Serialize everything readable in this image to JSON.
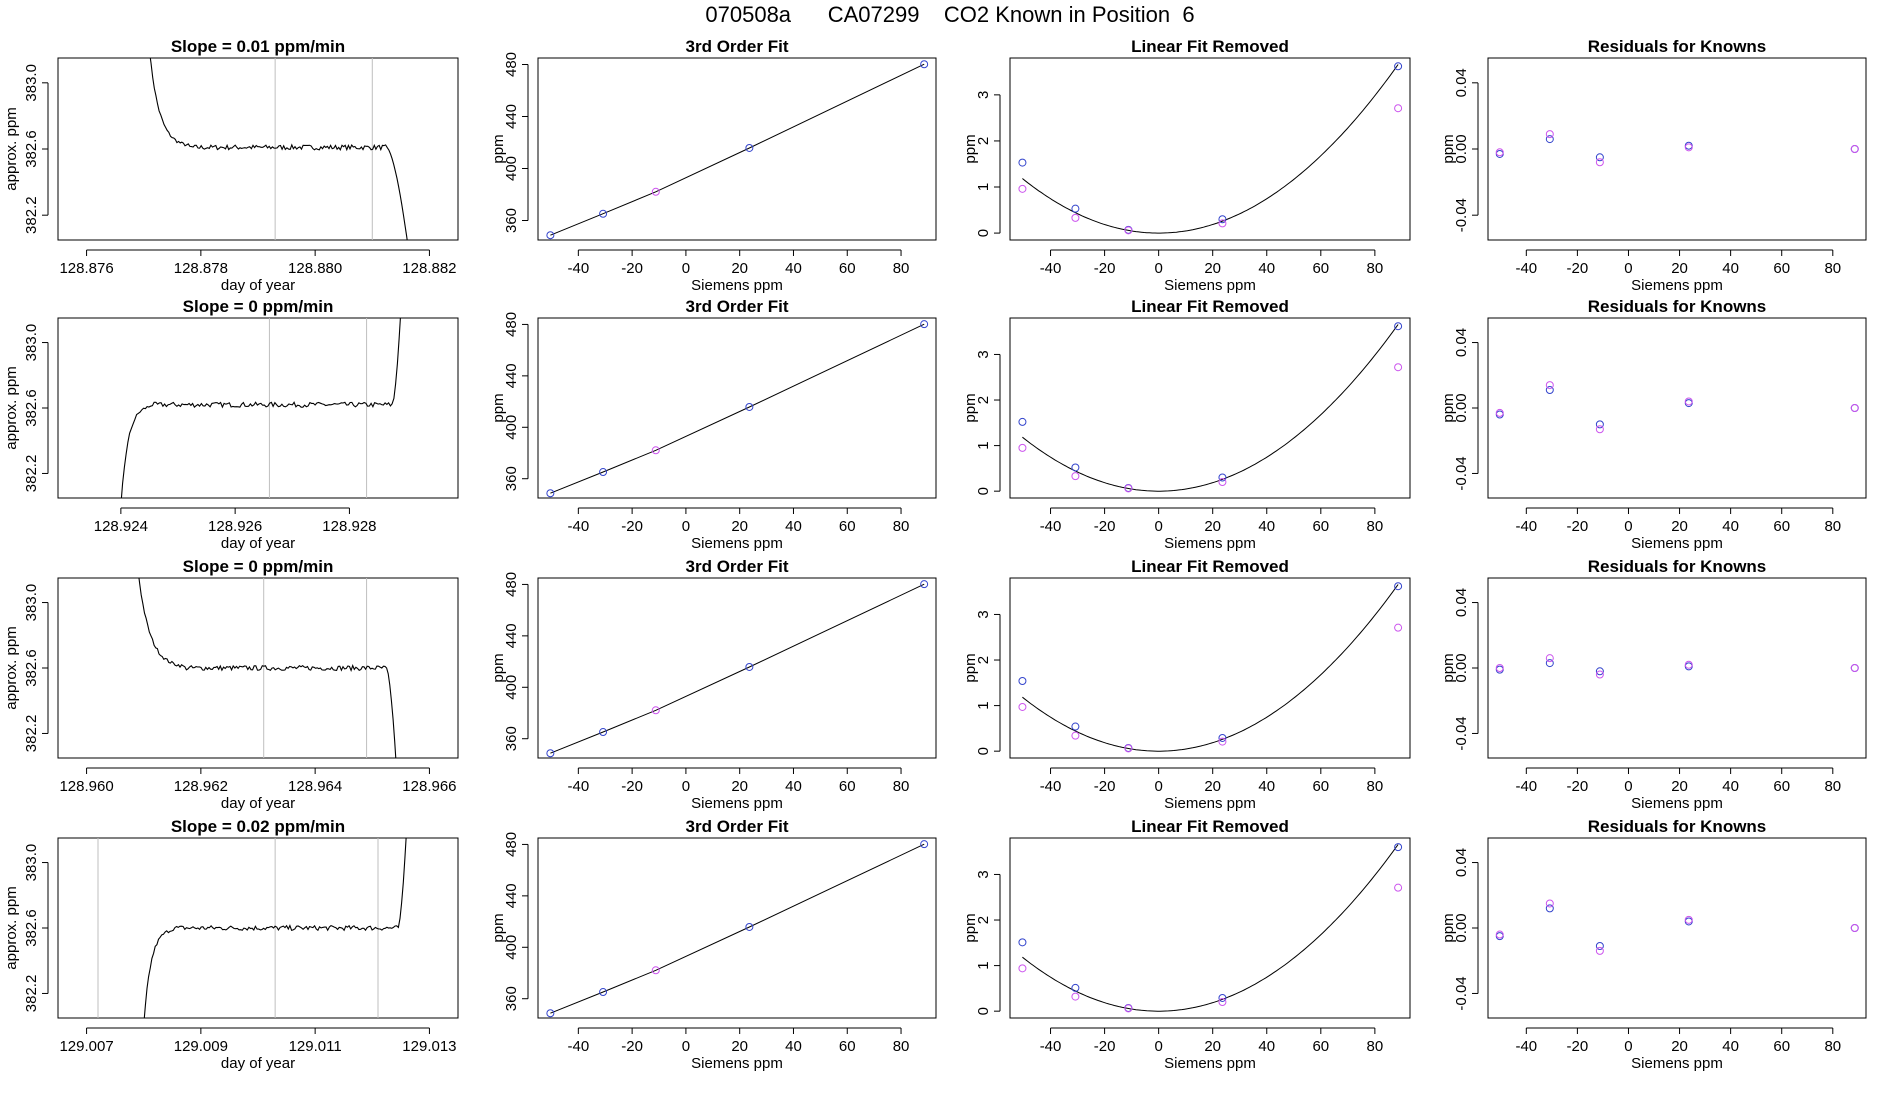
{
  "page": {
    "title": "070508a      CA07299    CO2 Known in Position  6"
  },
  "chart_data": [
    {
      "type": "line",
      "panel": "timeseries",
      "row": 0,
      "title": "Slope =  0.01  ppm/min",
      "xlabel": "day of year",
      "ylabel": "approx. ppm",
      "xlim": [
        128.8755,
        128.8825
      ],
      "ylim": [
        382.05,
        383.15
      ],
      "xticks": [
        128.876,
        128.878,
        128.88,
        128.882
      ],
      "xtick_labels": [
        "128.876",
        "128.878",
        "128.880",
        "128.882"
      ],
      "yticks": [
        382.2,
        382.6,
        383.0
      ],
      "ytick_labels": [
        "382.2",
        "382.6",
        "383.0"
      ],
      "vlines": [
        128.8793,
        128.881
      ],
      "trace": {
        "start": 128.8771,
        "end": 128.88163,
        "level": 382.61,
        "preFrom": 383.2,
        "preEnd": 128.8778,
        "postX": 128.88125,
        "postTo": 382.0,
        "dir": "down"
      }
    },
    {
      "type": "line",
      "panel": "fit",
      "row": 0,
      "title": "3rd Order Fit",
      "xlabel": "Siemens ppm",
      "ylabel": "ppm",
      "xlim": [
        -55,
        93
      ],
      "ylim": [
        345,
        485
      ],
      "xticks": [
        -40,
        -20,
        0,
        20,
        40,
        60,
        80
      ],
      "xtick_labels": [
        "-40",
        "-20",
        "0",
        "20",
        "40",
        "60",
        "80"
      ],
      "yticks": [
        360,
        400,
        440,
        480
      ],
      "ytick_labels": [
        "360",
        "400",
        "440",
        "480"
      ],
      "series": [
        {
          "x": [
            -50.4,
            -30.8,
            -11.2,
            23.6,
            88.6
          ],
          "y": [
            348.7,
            365.2,
            382.1,
            415.8,
            480.2
          ]
        }
      ]
    },
    {
      "type": "scatter",
      "panel": "linear_removed",
      "row": 0,
      "title": "Linear Fit Removed",
      "xlabel": "Siemens ppm",
      "ylabel": "ppm",
      "xlim": [
        -55,
        93
      ],
      "ylim": [
        -0.15,
        3.8
      ],
      "xticks": [
        -40,
        -20,
        0,
        20,
        40,
        60,
        80
      ],
      "xtick_labels": [
        "-40",
        "-20",
        "0",
        "20",
        "40",
        "60",
        "80"
      ],
      "yticks": [
        0,
        1,
        2,
        3
      ],
      "ytick_labels": [
        "0",
        "1",
        "2",
        "3"
      ],
      "curve_coef": 0.000466,
      "series": [
        {
          "x": [
            -50.4,
            -30.8,
            -11.2,
            23.6,
            88.6
          ],
          "y": [
            1.53,
            0.53,
            0.07,
            0.3,
            3.62
          ]
        },
        {
          "x": [
            -50.4,
            -30.8,
            -11.2,
            23.6,
            88.6
          ],
          "y": [
            0.96,
            0.33,
            0.06,
            0.21,
            2.71
          ]
        }
      ]
    },
    {
      "type": "scatter",
      "panel": "residuals",
      "row": 0,
      "title": "Residuals for Knowns",
      "xlabel": "Siemens ppm",
      "ylabel": "ppm",
      "xlim": [
        -55,
        93
      ],
      "ylim": [
        -0.055,
        0.055
      ],
      "xticks": [
        -40,
        -20,
        0,
        20,
        40,
        60,
        80
      ],
      "xtick_labels": [
        "-40",
        "-20",
        "0",
        "20",
        "40",
        "60",
        "80"
      ],
      "yticks": [
        -0.04,
        0.0,
        0.04
      ],
      "ytick_labels": [
        "-0.04",
        "0.00",
        "0.04"
      ],
      "series": [
        {
          "x": [
            -50.4,
            -30.8,
            -11.2,
            23.6,
            88.6
          ],
          "y": [
            -0.003,
            0.006,
            -0.005,
            0.002,
            0.0
          ]
        },
        {
          "x": [
            -50.4,
            -30.8,
            -11.2,
            23.6,
            88.6
          ],
          "y": [
            -0.002,
            0.009,
            -0.008,
            0.001,
            0.0
          ]
        }
      ]
    },
    {
      "type": "line",
      "panel": "timeseries",
      "row": 1,
      "title": "Slope =  0  ppm/min",
      "xlabel": "day of year",
      "ylabel": "approx. ppm",
      "xlim": [
        128.9229,
        128.9299
      ],
      "ylim": [
        382.05,
        383.15
      ],
      "xticks": [
        128.924,
        128.926,
        128.928
      ],
      "xtick_labels": [
        "128.924",
        "128.926",
        "128.928"
      ],
      "yticks": [
        382.2,
        382.6,
        383.0
      ],
      "ytick_labels": [
        "382.2",
        "382.6",
        "383.0"
      ],
      "vlines": [
        128.9266,
        128.9283
      ],
      "trace": {
        "start": 128.924,
        "end": 128.9289,
        "level": 382.62,
        "preFrom": 382.0,
        "preEnd": 128.9245,
        "postX": 128.92875,
        "postTo": 383.2,
        "dir": "up"
      }
    },
    {
      "type": "line",
      "panel": "fit",
      "row": 1,
      "title": "3rd Order Fit",
      "xlabel": "Siemens ppm",
      "ylabel": "ppm",
      "xlim": [
        -55,
        93
      ],
      "ylim": [
        345,
        485
      ],
      "xticks": [
        -40,
        -20,
        0,
        20,
        40,
        60,
        80
      ],
      "xtick_labels": [
        "-40",
        "-20",
        "0",
        "20",
        "40",
        "60",
        "80"
      ],
      "yticks": [
        360,
        400,
        440,
        480
      ],
      "ytick_labels": [
        "360",
        "400",
        "440",
        "480"
      ],
      "series": [
        {
          "x": [
            -50.4,
            -30.8,
            -11.2,
            23.6,
            88.6
          ],
          "y": [
            348.7,
            365.2,
            382.1,
            415.8,
            480.2
          ]
        }
      ]
    },
    {
      "type": "scatter",
      "panel": "linear_removed",
      "row": 1,
      "title": "Linear Fit Removed",
      "xlabel": "Siemens ppm",
      "ylabel": "ppm",
      "xlim": [
        -55,
        93
      ],
      "ylim": [
        -0.15,
        3.8
      ],
      "xticks": [
        -40,
        -20,
        0,
        20,
        40,
        60,
        80
      ],
      "xtick_labels": [
        "-40",
        "-20",
        "0",
        "20",
        "40",
        "60",
        "80"
      ],
      "yticks": [
        0,
        1,
        2,
        3
      ],
      "ytick_labels": [
        "0",
        "1",
        "2",
        "3"
      ],
      "curve_coef": 0.000466,
      "series": [
        {
          "x": [
            -50.4,
            -30.8,
            -11.2,
            23.6,
            88.6
          ],
          "y": [
            1.52,
            0.52,
            0.07,
            0.3,
            3.62
          ]
        },
        {
          "x": [
            -50.4,
            -30.8,
            -11.2,
            23.6,
            88.6
          ],
          "y": [
            0.95,
            0.33,
            0.06,
            0.2,
            2.72
          ]
        }
      ]
    },
    {
      "type": "scatter",
      "panel": "residuals",
      "row": 1,
      "title": "Residuals for Knowns",
      "xlabel": "Siemens ppm",
      "ylabel": "ppm",
      "xlim": [
        -55,
        93
      ],
      "ylim": [
        -0.055,
        0.055
      ],
      "xticks": [
        -40,
        -20,
        0,
        20,
        40,
        60,
        80
      ],
      "xtick_labels": [
        "-40",
        "-20",
        "0",
        "20",
        "40",
        "60",
        "80"
      ],
      "yticks": [
        -0.04,
        0.0,
        0.04
      ],
      "ytick_labels": [
        "-0.04",
        "0.00",
        "0.04"
      ],
      "series": [
        {
          "x": [
            -50.4,
            -30.8,
            -11.2,
            23.6,
            88.6
          ],
          "y": [
            -0.004,
            0.011,
            -0.01,
            0.003,
            0.0
          ]
        },
        {
          "x": [
            -50.4,
            -30.8,
            -11.2,
            23.6,
            88.6
          ],
          "y": [
            -0.003,
            0.014,
            -0.013,
            0.004,
            0.0
          ]
        }
      ]
    },
    {
      "type": "line",
      "panel": "timeseries",
      "row": 2,
      "title": "Slope =  0  ppm/min",
      "xlabel": "day of year",
      "ylabel": "approx. ppm",
      "xlim": [
        128.9595,
        128.9665
      ],
      "ylim": [
        382.05,
        383.15
      ],
      "xticks": [
        128.96,
        128.962,
        128.964,
        128.966
      ],
      "xtick_labels": [
        "128.960",
        "128.962",
        "128.964",
        "128.966"
      ],
      "yticks": [
        382.2,
        382.6,
        383.0
      ],
      "ytick_labels": [
        "382.2",
        "382.6",
        "383.0"
      ],
      "vlines": [
        128.9631,
        128.9649
      ],
      "trace": {
        "start": 128.9609,
        "end": 128.96542,
        "level": 382.6,
        "preFrom": 383.2,
        "preEnd": 128.9617,
        "postX": 128.96525,
        "postTo": 382.0,
        "dir": "down"
      }
    },
    {
      "type": "line",
      "panel": "fit",
      "row": 2,
      "title": "3rd Order Fit",
      "xlabel": "Siemens ppm",
      "ylabel": "ppm",
      "xlim": [
        -55,
        93
      ],
      "ylim": [
        345,
        485
      ],
      "xticks": [
        -40,
        -20,
        0,
        20,
        40,
        60,
        80
      ],
      "xtick_labels": [
        "-40",
        "-20",
        "0",
        "20",
        "40",
        "60",
        "80"
      ],
      "yticks": [
        360,
        400,
        440,
        480
      ],
      "ytick_labels": [
        "360",
        "400",
        "440",
        "480"
      ],
      "series": [
        {
          "x": [
            -50.4,
            -30.8,
            -11.2,
            23.6,
            88.6
          ],
          "y": [
            348.7,
            365.2,
            382.1,
            415.8,
            480.2
          ]
        }
      ]
    },
    {
      "type": "scatter",
      "panel": "linear_removed",
      "row": 2,
      "title": "Linear Fit Removed",
      "xlabel": "Siemens ppm",
      "ylabel": "ppm",
      "xlim": [
        -55,
        93
      ],
      "ylim": [
        -0.15,
        3.8
      ],
      "xticks": [
        -40,
        -20,
        0,
        20,
        40,
        60,
        80
      ],
      "xtick_labels": [
        "-40",
        "-20",
        "0",
        "20",
        "40",
        "60",
        "80"
      ],
      "yticks": [
        0,
        1,
        2,
        3
      ],
      "ytick_labels": [
        "0",
        "1",
        "2",
        "3"
      ],
      "curve_coef": 0.000466,
      "series": [
        {
          "x": [
            -50.4,
            -30.8,
            -11.2,
            23.6,
            88.6
          ],
          "y": [
            1.54,
            0.54,
            0.07,
            0.29,
            3.62
          ]
        },
        {
          "x": [
            -50.4,
            -30.8,
            -11.2,
            23.6,
            88.6
          ],
          "y": [
            0.97,
            0.34,
            0.06,
            0.21,
            2.71
          ]
        }
      ]
    },
    {
      "type": "scatter",
      "panel": "residuals",
      "row": 2,
      "title": "Residuals for Knowns",
      "xlabel": "Siemens ppm",
      "ylabel": "ppm",
      "xlim": [
        -55,
        93
      ],
      "ylim": [
        -0.055,
        0.055
      ],
      "xticks": [
        -40,
        -20,
        0,
        20,
        40,
        60,
        80
      ],
      "xtick_labels": [
        "-40",
        "-20",
        "0",
        "20",
        "40",
        "60",
        "80"
      ],
      "yticks": [
        -0.04,
        0.0,
        0.04
      ],
      "ytick_labels": [
        "-0.04",
        "0.00",
        "0.04"
      ],
      "series": [
        {
          "x": [
            -50.4,
            -30.8,
            -11.2,
            23.6,
            88.6
          ],
          "y": [
            -0.001,
            0.003,
            -0.002,
            0.001,
            0.0
          ]
        },
        {
          "x": [
            -50.4,
            -30.8,
            -11.2,
            23.6,
            88.6
          ],
          "y": [
            0.0,
            0.006,
            -0.004,
            0.002,
            0.0
          ]
        }
      ]
    },
    {
      "type": "line",
      "panel": "timeseries",
      "row": 3,
      "title": "Slope =  0.02  ppm/min",
      "xlabel": "day of year",
      "ylabel": "approx. ppm",
      "xlim": [
        129.0065,
        129.0135
      ],
      "ylim": [
        382.05,
        383.15
      ],
      "xticks": [
        129.007,
        129.009,
        129.011,
        129.013
      ],
      "xtick_labels": [
        "129.007",
        "129.009",
        "129.011",
        "129.013"
      ],
      "yticks": [
        382.2,
        382.6,
        383.0
      ],
      "ytick_labels": [
        "382.2",
        "382.6",
        "383.0"
      ],
      "vlines": [
        129.0072,
        129.0103,
        129.0121
      ],
      "trace": {
        "start": 129.008,
        "end": 129.0126,
        "level": 382.6,
        "preFrom": 382.0,
        "preEnd": 129.0085,
        "postX": 129.01245,
        "postTo": 383.2,
        "dir": "up"
      }
    },
    {
      "type": "line",
      "panel": "fit",
      "row": 3,
      "title": "3rd Order Fit",
      "xlabel": "Siemens ppm",
      "ylabel": "ppm",
      "xlim": [
        -55,
        93
      ],
      "ylim": [
        345,
        485
      ],
      "xticks": [
        -40,
        -20,
        0,
        20,
        40,
        60,
        80
      ],
      "xtick_labels": [
        "-40",
        "-20",
        "0",
        "20",
        "40",
        "60",
        "80"
      ],
      "yticks": [
        360,
        400,
        440,
        480
      ],
      "ytick_labels": [
        "360",
        "400",
        "440",
        "480"
      ],
      "series": [
        {
          "x": [
            -50.4,
            -30.8,
            -11.2,
            23.6,
            88.6
          ],
          "y": [
            348.7,
            365.2,
            382.1,
            415.8,
            480.2
          ]
        }
      ]
    },
    {
      "type": "scatter",
      "panel": "linear_removed",
      "row": 3,
      "title": "Linear Fit Removed",
      "xlabel": "Siemens ppm",
      "ylabel": "ppm",
      "xlim": [
        -55,
        93
      ],
      "ylim": [
        -0.15,
        3.8
      ],
      "xticks": [
        -40,
        -20,
        0,
        20,
        40,
        60,
        80
      ],
      "xtick_labels": [
        "-40",
        "-20",
        "0",
        "20",
        "40",
        "60",
        "80"
      ],
      "yticks": [
        0,
        1,
        2,
        3
      ],
      "ytick_labels": [
        "0",
        "1",
        "2",
        "3"
      ],
      "curve_coef": 0.000466,
      "series": [
        {
          "x": [
            -50.4,
            -30.8,
            -11.2,
            23.6,
            88.6
          ],
          "y": [
            1.51,
            0.51,
            0.07,
            0.29,
            3.6
          ]
        },
        {
          "x": [
            -50.4,
            -30.8,
            -11.2,
            23.6,
            88.6
          ],
          "y": [
            0.94,
            0.32,
            0.06,
            0.2,
            2.71
          ]
        }
      ]
    },
    {
      "type": "scatter",
      "panel": "residuals",
      "row": 3,
      "title": "Residuals for Knowns",
      "xlabel": "Siemens ppm",
      "ylabel": "ppm",
      "xlim": [
        -55,
        93
      ],
      "ylim": [
        -0.055,
        0.055
      ],
      "xticks": [
        -40,
        -20,
        0,
        20,
        40,
        60,
        80
      ],
      "xtick_labels": [
        "-40",
        "-20",
        "0",
        "20",
        "40",
        "60",
        "80"
      ],
      "yticks": [
        -0.04,
        0.0,
        0.04
      ],
      "ytick_labels": [
        "-0.04",
        "0.00",
        "0.04"
      ],
      "series": [
        {
          "x": [
            -50.4,
            -30.8,
            -11.2,
            23.6,
            88.6
          ],
          "y": [
            -0.005,
            0.012,
            -0.011,
            0.004,
            0.0
          ]
        },
        {
          "x": [
            -50.4,
            -30.8,
            -11.2,
            23.6,
            88.6
          ],
          "y": [
            -0.004,
            0.015,
            -0.014,
            0.005,
            0.0
          ]
        }
      ]
    }
  ],
  "colors": {
    "axis": "#000000",
    "vline": "#bfbfbf",
    "series_primary": "#3344cc",
    "series_secondary": "#cc55ee",
    "fit_line": "#000000"
  }
}
